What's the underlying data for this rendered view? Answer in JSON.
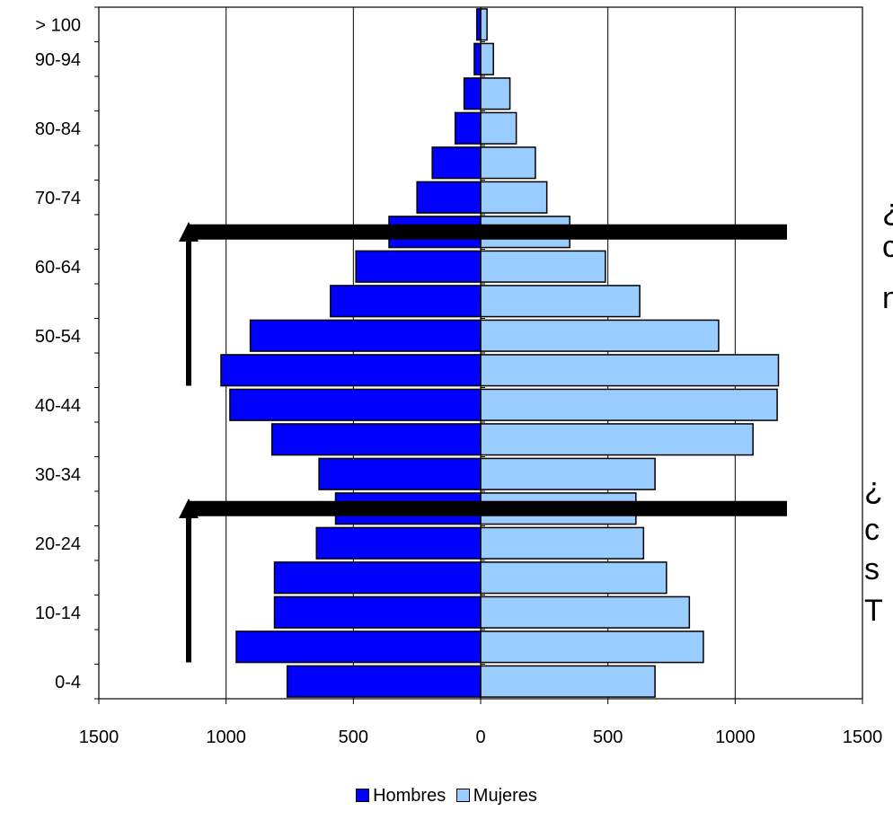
{
  "chart_data": {
    "type": "bar",
    "orientation": "horizontal-population-pyramid",
    "categories": [
      "0-4",
      "5-9",
      "10-14",
      "15-19",
      "20-24",
      "25-29",
      "30-34",
      "35-39",
      "40-44",
      "45-49",
      "50-54",
      "55-59",
      "60-64",
      "65-69",
      "70-74",
      "75-79",
      "80-84",
      "85-89",
      "90-94",
      "> 100"
    ],
    "tick_labels_shown": [
      "0-4",
      "10-14",
      "20-24",
      "30-34",
      "40-44",
      "50-54",
      "60-64",
      "70-74",
      "80-84",
      "90-94",
      "> 100"
    ],
    "series": [
      {
        "name": "Hombres",
        "color": "#0000ff",
        "values": [
          760,
          960,
          810,
          810,
          645,
          570,
          635,
          820,
          985,
          1020,
          905,
          590,
          490,
          360,
          250,
          190,
          100,
          65,
          25,
          15
        ]
      },
      {
        "name": "Mujeres",
        "color": "#99ccff",
        "values": [
          685,
          875,
          820,
          730,
          640,
          610,
          685,
          1070,
          1165,
          1170,
          935,
          625,
          490,
          350,
          260,
          215,
          140,
          115,
          50,
          25
        ]
      }
    ],
    "x_ticks": [
      "1500",
      "1000",
      "500",
      "0",
      "500",
      "1000",
      "1500"
    ],
    "xlim": [
      -1500,
      1500
    ],
    "grid": "vertical",
    "legend_position": "bottom"
  },
  "annotations": {
    "horizontal_bars_at": [
      "25-29",
      "65-69"
    ],
    "arrows_at": [
      "15-19",
      "55-59"
    ],
    "side_text": [
      {
        "text": "¿"
      },
      {
        "text": "c"
      },
      {
        "text": "n"
      },
      {
        "text": "¿"
      },
      {
        "text": "c"
      },
      {
        "text": "s"
      },
      {
        "text": "T"
      }
    ]
  }
}
